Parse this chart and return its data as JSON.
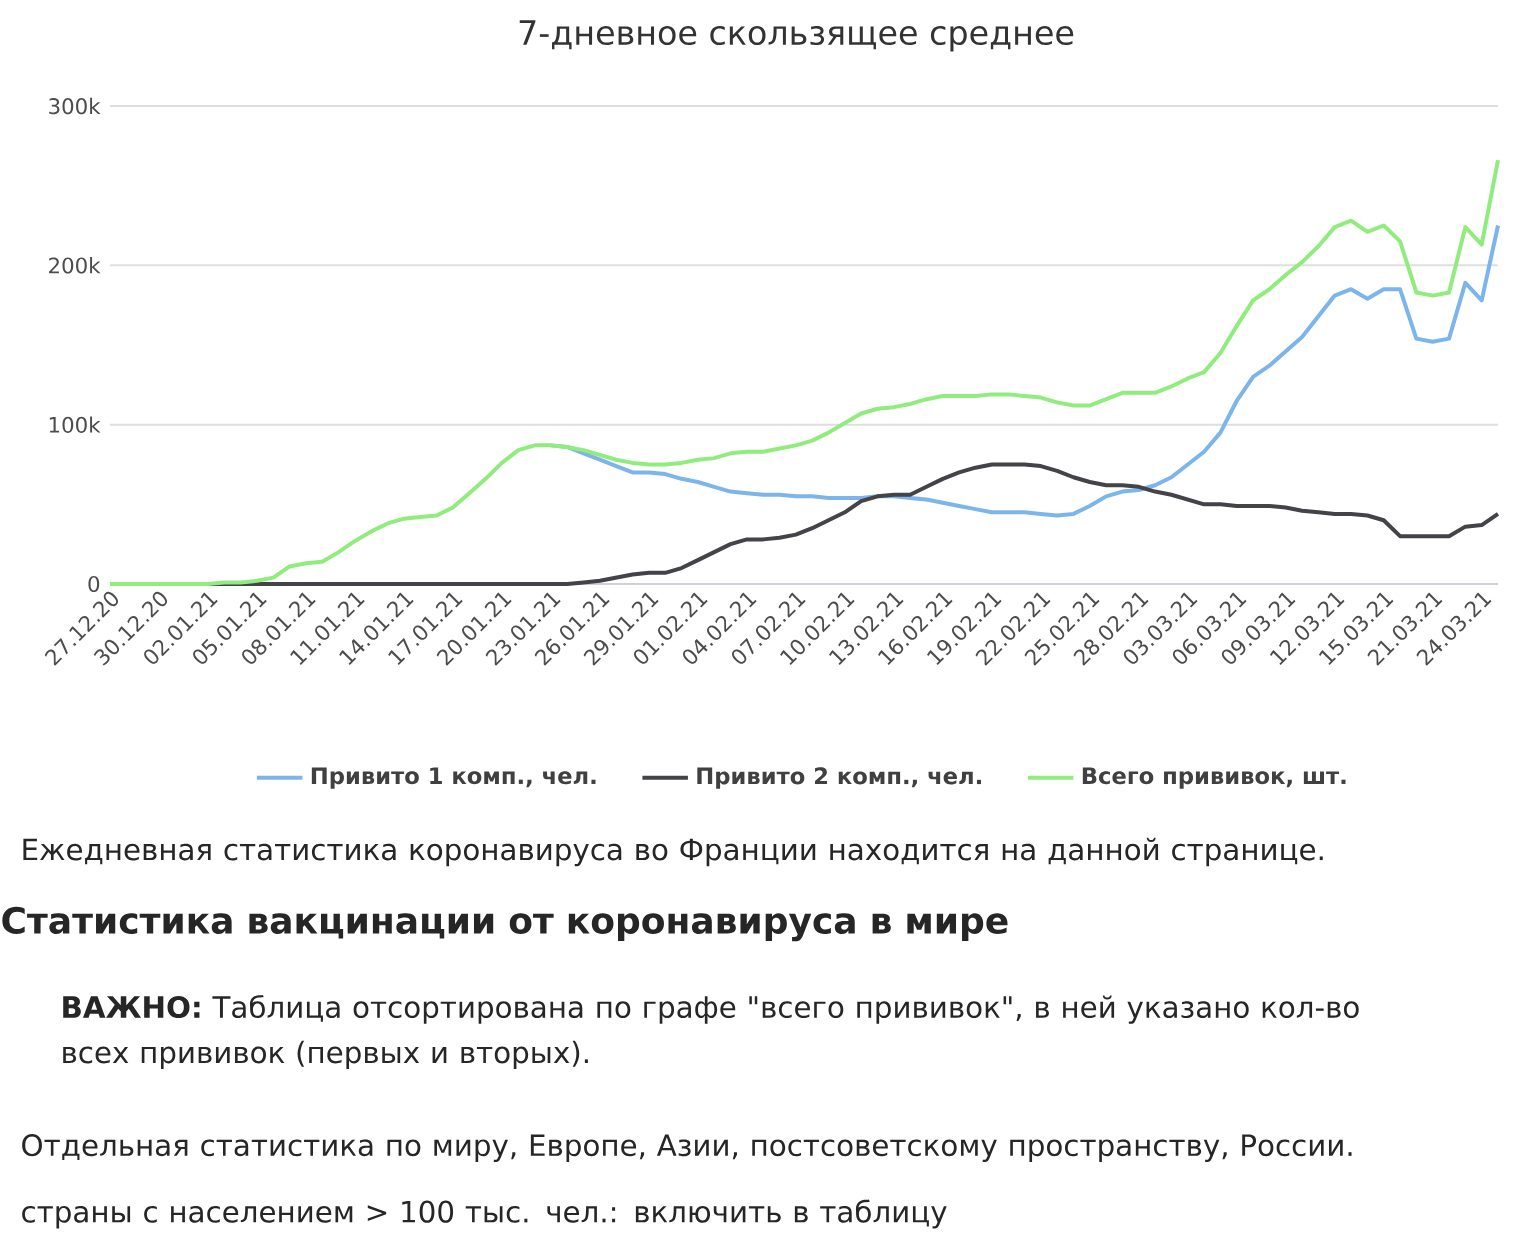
{
  "chart_data": {
    "type": "line",
    "title": "7-дневное скользящее среднее",
    "categories": [
      "27.12.20",
      null,
      null,
      "30.12.20",
      null,
      null,
      "02.01.21",
      null,
      null,
      "05.01.21",
      null,
      null,
      "08.01.21",
      null,
      null,
      "11.01.21",
      null,
      null,
      "14.01.21",
      null,
      null,
      "17.01.21",
      null,
      null,
      "20.01.21",
      null,
      null,
      "23.01.21",
      null,
      null,
      "26.01.21",
      null,
      null,
      "29.01.21",
      null,
      null,
      "01.02.21",
      null,
      null,
      "04.02.21",
      null,
      null,
      "07.02.21",
      null,
      null,
      "10.02.21",
      null,
      null,
      "13.02.21",
      null,
      null,
      "16.02.21",
      null,
      null,
      "19.02.21",
      null,
      null,
      "22.02.21",
      null,
      null,
      "25.02.21",
      null,
      null,
      "28.02.21",
      null,
      null,
      "03.03.21",
      null,
      null,
      "06.03.21",
      null,
      null,
      "09.03.21",
      null,
      null,
      "12.03.21",
      null,
      null,
      "15.03.21",
      null,
      null,
      "21.03.21",
      null,
      null,
      "24.03.21",
      null
    ],
    "series": [
      {
        "name": "Привито 1 комп., чел.",
        "color": "#7cb5ec",
        "values": [
          null,
          null,
          null,
          null,
          null,
          null,
          null,
          null,
          null,
          null,
          null,
          null,
          null,
          null,
          null,
          null,
          null,
          null,
          null,
          null,
          null,
          null,
          null,
          null,
          null,
          null,
          null,
          87000,
          86000,
          82000,
          78000,
          74000,
          70000,
          70000,
          69000,
          66000,
          64000,
          61000,
          58000,
          57000,
          56000,
          56000,
          55000,
          55000,
          54000,
          54000,
          54000,
          55000,
          55000,
          54000,
          53000,
          51000,
          49000,
          47000,
          45000,
          45000,
          45000,
          44000,
          43000,
          44000,
          49000,
          55000,
          58000,
          59000,
          62000,
          67000,
          75000,
          83000,
          95000,
          115000,
          130000,
          137000,
          146000,
          155000,
          168000,
          181000,
          185000,
          179000,
          185000,
          185000,
          154000,
          152000,
          154000,
          189000,
          178000,
          225000
        ]
      },
      {
        "name": "Привито 2 комп., чел.",
        "color": "#434348",
        "values": [
          null,
          null,
          null,
          null,
          null,
          0,
          0,
          0,
          0,
          0,
          0,
          0,
          0,
          0,
          0,
          0,
          0,
          0,
          0,
          0,
          0,
          0,
          0,
          0,
          0,
          0,
          0,
          0,
          0,
          1000,
          2000,
          4000,
          6000,
          7000,
          7000,
          10000,
          15000,
          20000,
          25000,
          28000,
          28000,
          29000,
          31000,
          35000,
          40000,
          45000,
          52000,
          55000,
          56000,
          56000,
          61000,
          66000,
          70000,
          73000,
          75000,
          75000,
          75000,
          74000,
          71000,
          67000,
          64000,
          62000,
          62000,
          61000,
          58000,
          56000,
          53000,
          50000,
          50000,
          49000,
          49000,
          49000,
          48000,
          46000,
          45000,
          44000,
          44000,
          43000,
          40000,
          30000,
          30000,
          30000,
          30000,
          36000,
          37000,
          44000
        ]
      },
      {
        "name": "Всего прививок, шт.",
        "color": "#90ed7d",
        "values": [
          0,
          0,
          0,
          0,
          0,
          0,
          0,
          1000,
          1000,
          2000,
          4000,
          11000,
          13000,
          14000,
          20000,
          27000,
          33000,
          38000,
          41000,
          42000,
          43000,
          48000,
          57000,
          66000,
          76000,
          84000,
          87000,
          87000,
          86000,
          84000,
          81000,
          78000,
          76000,
          75000,
          75000,
          76000,
          78000,
          79000,
          82000,
          83000,
          83000,
          85000,
          87000,
          90000,
          95000,
          101000,
          107000,
          110000,
          111000,
          113000,
          116000,
          118000,
          118000,
          118000,
          119000,
          119000,
          118000,
          117000,
          114000,
          112000,
          112000,
          116000,
          120000,
          120000,
          120000,
          124000,
          129000,
          133000,
          145000,
          162000,
          178000,
          185000,
          194000,
          202000,
          212000,
          224000,
          228000,
          221000,
          225000,
          215000,
          183000,
          181000,
          183000,
          224000,
          213000,
          266000
        ]
      }
    ],
    "ylim": [
      0,
      300000
    ],
    "yticks": [
      {
        "value": 0,
        "label": "0"
      },
      {
        "value": 100000,
        "label": "100k"
      },
      {
        "value": 200000,
        "label": "200k"
      },
      {
        "value": 300000,
        "label": "300k"
      }
    ],
    "grid": "y",
    "legend": "bottom",
    "marker": "none",
    "line_style": "solid",
    "annotations": [
      "Ежедневная статистика коронавируса во Франции находится на данной странице.",
      "Статистика вакцинации от коронавируса в мире",
      "**ВАЖНО:** Таблица отсортирована по графе \"всего прививок\", в ней указано кол-во всех прививок (первых и вторых).",
      "Отдельная статистика по миру, Европе, Азии, постсоветскому пространству, России.",
      "страны с населением > 100 тыс. чел.: включить в таблицу"
    ]
  }
}
